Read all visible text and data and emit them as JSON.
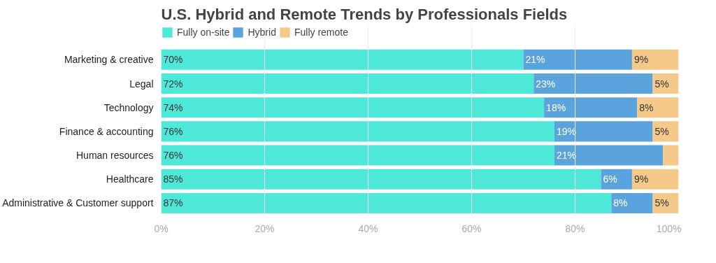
{
  "chart_data": {
    "type": "bar",
    "orientation": "horizontal",
    "stacked": true,
    "title": "U.S. Hybrid and Remote Trends by Professionals Fields",
    "categories": [
      "Marketing & creative",
      "Legal",
      "Technology",
      "Finance & accounting",
      "Human resources",
      "Healthcare",
      "Administrative & Customer support"
    ],
    "series": [
      {
        "name": "Fully on-site",
        "color": "#4de8d8",
        "values": [
          70,
          72,
          74,
          76,
          76,
          85,
          87
        ],
        "value_labels": [
          "70%",
          "72%",
          "74%",
          "76%",
          "76%",
          "85%",
          "87%"
        ]
      },
      {
        "name": "Hybrid",
        "color": "#5ba3dc",
        "values": [
          21,
          23,
          18,
          19,
          21,
          6,
          8
        ],
        "value_labels": [
          "21%",
          "23%",
          "18%",
          "19%",
          "21%",
          "6%",
          "8%"
        ]
      },
      {
        "name": "Fully remote",
        "color": "#f5c98a",
        "values": [
          9,
          5,
          8,
          5,
          3,
          9,
          5
        ],
        "value_labels": [
          "9%",
          "5%",
          "8%",
          "5%",
          null,
          "9%",
          "5%"
        ]
      }
    ],
    "xlim": [
      0,
      100
    ],
    "xticks": [
      {
        "value": 0,
        "label": "0%"
      },
      {
        "value": 20,
        "label": "20%"
      },
      {
        "value": 40,
        "label": "40%"
      },
      {
        "value": 60,
        "label": "60%"
      },
      {
        "value": 80,
        "label": "80%"
      },
      {
        "value": 100,
        "label": "100%"
      }
    ],
    "grid": "x",
    "legend": "top left"
  }
}
